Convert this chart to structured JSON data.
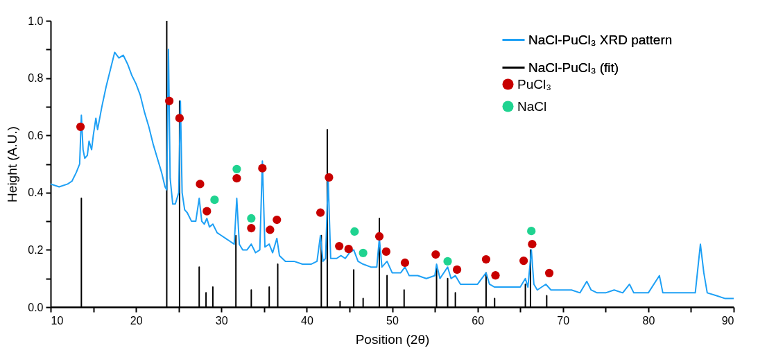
{
  "chart_data": {
    "type": "line",
    "xlabel": "Position (2θ)",
    "ylabel": "Height (A.U.)",
    "xlim": [
      10,
      90
    ],
    "ylim": [
      0,
      1.0
    ],
    "xticks": [
      10,
      {
        "value": 15,
        "label": null
      },
      20,
      {
        "value": 25,
        "label": null
      },
      30,
      {
        "value": 35,
        "label": null
      },
      40,
      {
        "value": 45,
        "label": null
      },
      50,
      {
        "value": 55,
        "label": null
      },
      60,
      {
        "value": 65,
        "label": null
      },
      70,
      {
        "value": 75,
        "label": null
      },
      80,
      {
        "value": 85,
        "label": null
      },
      90
    ],
    "yticks": [
      {
        "value": 0,
        "label": "0.0"
      },
      {
        "value": 0.1,
        "label": null
      },
      {
        "value": 0.2,
        "label": "0.2"
      },
      {
        "value": 0.3,
        "label": null
      },
      {
        "value": 0.4,
        "label": "0.4"
      },
      {
        "value": 0.5,
        "label": null
      },
      {
        "value": 0.6,
        "label": "0.6"
      },
      {
        "value": 0.7,
        "label": null
      },
      {
        "value": 0.8,
        "label": "0.8"
      },
      {
        "value": 0.9,
        "label": null
      },
      {
        "value": 1.0,
        "label": "1.0"
      }
    ],
    "grid": false,
    "legend": "top right",
    "series": [
      {
        "name": "NaCl-PuCl₃ XRD pattern",
        "type": "line",
        "color": "#1ea0f5",
        "marker": "none",
        "line_style": "solid",
        "x": [
          10,
          11,
          12,
          12.5,
          13,
          13.4,
          13.6,
          13.8,
          14.0,
          14.3,
          14.5,
          14.8,
          15,
          15.3,
          15.5,
          16,
          16.5,
          17,
          17.5,
          18,
          18.5,
          19,
          19.5,
          20,
          20.5,
          21,
          21.5,
          22,
          22.5,
          23,
          23.4,
          23.6,
          23.8,
          24.0,
          24.3,
          24.6,
          25.0,
          25.2,
          25.4,
          25.7,
          26,
          26.5,
          27,
          27.4,
          27.7,
          28.0,
          28.3,
          28.6,
          29,
          29.5,
          30,
          30.5,
          31,
          31.5,
          31.8,
          32.1,
          32.5,
          33,
          33.5,
          34,
          34.5,
          34.8,
          35.1,
          35.6,
          36,
          36.5,
          36.8,
          37.5,
          38.5,
          39.5,
          40.5,
          41.2,
          41.6,
          41.9,
          42.2,
          42.5,
          42.8,
          43.5,
          44,
          44.5,
          45,
          45.5,
          46,
          46.6,
          47.5,
          48.2,
          48.5,
          48.8,
          49.4,
          50,
          51,
          51.5,
          52,
          53,
          54,
          55,
          55.2,
          55.6,
          56.5,
          56.9,
          57.4,
          58,
          59,
          60,
          61,
          61.4,
          62,
          63,
          64,
          65,
          65.6,
          65.9,
          66.3,
          66.6,
          67,
          68,
          68.6,
          70,
          71,
          72,
          72.8,
          73.3,
          74,
          75,
          76,
          77,
          77.8,
          78.3,
          79,
          80,
          81.3,
          81.7,
          82.5,
          84,
          85.5,
          86.1,
          86.5,
          86.9,
          88,
          89,
          90
        ],
        "values": [
          0.43,
          0.42,
          0.43,
          0.44,
          0.47,
          0.5,
          0.67,
          0.55,
          0.52,
          0.53,
          0.58,
          0.55,
          0.6,
          0.66,
          0.62,
          0.7,
          0.77,
          0.83,
          0.89,
          0.87,
          0.88,
          0.85,
          0.81,
          0.78,
          0.74,
          0.68,
          0.63,
          0.57,
          0.52,
          0.47,
          0.42,
          0.41,
          0.9,
          0.45,
          0.36,
          0.36,
          0.4,
          0.72,
          0.4,
          0.34,
          0.33,
          0.3,
          0.3,
          0.38,
          0.3,
          0.29,
          0.31,
          0.28,
          0.29,
          0.26,
          0.25,
          0.24,
          0.23,
          0.22,
          0.38,
          0.22,
          0.2,
          0.2,
          0.22,
          0.19,
          0.2,
          0.51,
          0.21,
          0.22,
          0.19,
          0.24,
          0.18,
          0.16,
          0.16,
          0.15,
          0.15,
          0.16,
          0.25,
          0.16,
          0.17,
          0.45,
          0.17,
          0.17,
          0.18,
          0.17,
          0.19,
          0.2,
          0.16,
          0.15,
          0.14,
          0.14,
          0.24,
          0.14,
          0.16,
          0.12,
          0.12,
          0.14,
          0.11,
          0.11,
          0.1,
          0.11,
          0.15,
          0.1,
          0.14,
          0.1,
          0.11,
          0.08,
          0.08,
          0.08,
          0.12,
          0.08,
          0.07,
          0.07,
          0.07,
          0.07,
          0.1,
          0.07,
          0.2,
          0.08,
          0.06,
          0.08,
          0.06,
          0.06,
          0.06,
          0.05,
          0.09,
          0.06,
          0.05,
          0.05,
          0.06,
          0.05,
          0.08,
          0.05,
          0.05,
          0.05,
          0.11,
          0.05,
          0.05,
          0.05,
          0.05,
          0.22,
          0.12,
          0.05,
          0.04,
          0.03,
          0.03
        ]
      },
      {
        "name": "NaCl-PuCl₃ (fit)",
        "type": "line",
        "color": "#000000",
        "marker": "none",
        "line_style": "solid",
        "x": [
          10,
          13.6,
          13.6,
          13.6,
          23.6,
          23.6,
          23.6,
          25.1,
          25.1,
          25.1,
          27.4,
          27.4,
          27.4,
          28.2,
          28.2,
          28.2,
          29.0,
          29.0,
          29.0,
          31.7,
          31.7,
          31.7,
          33.5,
          33.5,
          33.5,
          35.6,
          35.6,
          35.6,
          36.6,
          36.6,
          36.6,
          41.7,
          41.7,
          41.7,
          42.4,
          42.4,
          42.4,
          43.9,
          43.9,
          43.9,
          45.5,
          45.5,
          45.5,
          46.6,
          46.6,
          46.6,
          48.5,
          48.5,
          48.5,
          49.4,
          49.4,
          49.4,
          51.4,
          51.4,
          51.4,
          55.2,
          55.2,
          55.2,
          56.5,
          56.5,
          56.5,
          57.4,
          57.4,
          57.4,
          61.0,
          61.0,
          61.0,
          62.0,
          62.0,
          62.0,
          65.6,
          65.6,
          65.6,
          66.2,
          66.2,
          66.2,
          68.1,
          68.1,
          68.1,
          90
        ],
        "values": [
          0,
          0,
          0.38,
          0,
          0,
          1.0,
          0,
          0,
          0.72,
          0,
          0,
          0.14,
          0,
          0,
          0.05,
          0,
          0,
          0.07,
          0,
          0,
          0.25,
          0,
          0,
          0.06,
          0,
          0,
          0.07,
          0,
          0,
          0.15,
          0,
          0,
          0.25,
          0,
          0,
          0.62,
          0,
          0,
          0.02,
          0,
          0,
          0.13,
          0,
          0,
          0.03,
          0,
          0,
          0.31,
          0,
          0,
          0.11,
          0,
          0,
          0.06,
          0,
          0,
          0.14,
          0,
          0,
          0.1,
          0,
          0,
          0.05,
          0,
          0,
          0.12,
          0,
          0,
          0.03,
          0,
          0,
          0.08,
          0,
          0,
          0.2,
          0,
          0,
          0.04,
          0,
          0
        ]
      },
      {
        "name": "PuCl₃",
        "type": "scatter",
        "color": "#c80000",
        "marker": "circle",
        "x": [
          13.5,
          23.9,
          25.1,
          27.5,
          28.3,
          31.8,
          33.5,
          34.8,
          35.7,
          36.5,
          41.6,
          42.6,
          43.8,
          44.9,
          48.5,
          49.3,
          51.5,
          55.1,
          57.6,
          61.0,
          62.1,
          65.4,
          66.4,
          68.4
        ],
        "values": [
          0.63,
          0.72,
          0.66,
          0.43,
          0.335,
          0.45,
          0.276,
          0.485,
          0.27,
          0.305,
          0.33,
          0.453,
          0.213,
          0.203,
          0.247,
          0.194,
          0.155,
          0.184,
          0.131,
          0.167,
          0.111,
          0.162,
          0.22,
          0.119
        ]
      },
      {
        "name": "NaCl",
        "type": "scatter",
        "color": "#1fd390",
        "marker": "circle",
        "x": [
          29.2,
          31.8,
          33.5,
          45.6,
          46.6,
          56.5,
          66.3
        ],
        "values": [
          0.375,
          0.482,
          0.31,
          0.264,
          0.189,
          0.16,
          0.266
        ]
      }
    ]
  }
}
